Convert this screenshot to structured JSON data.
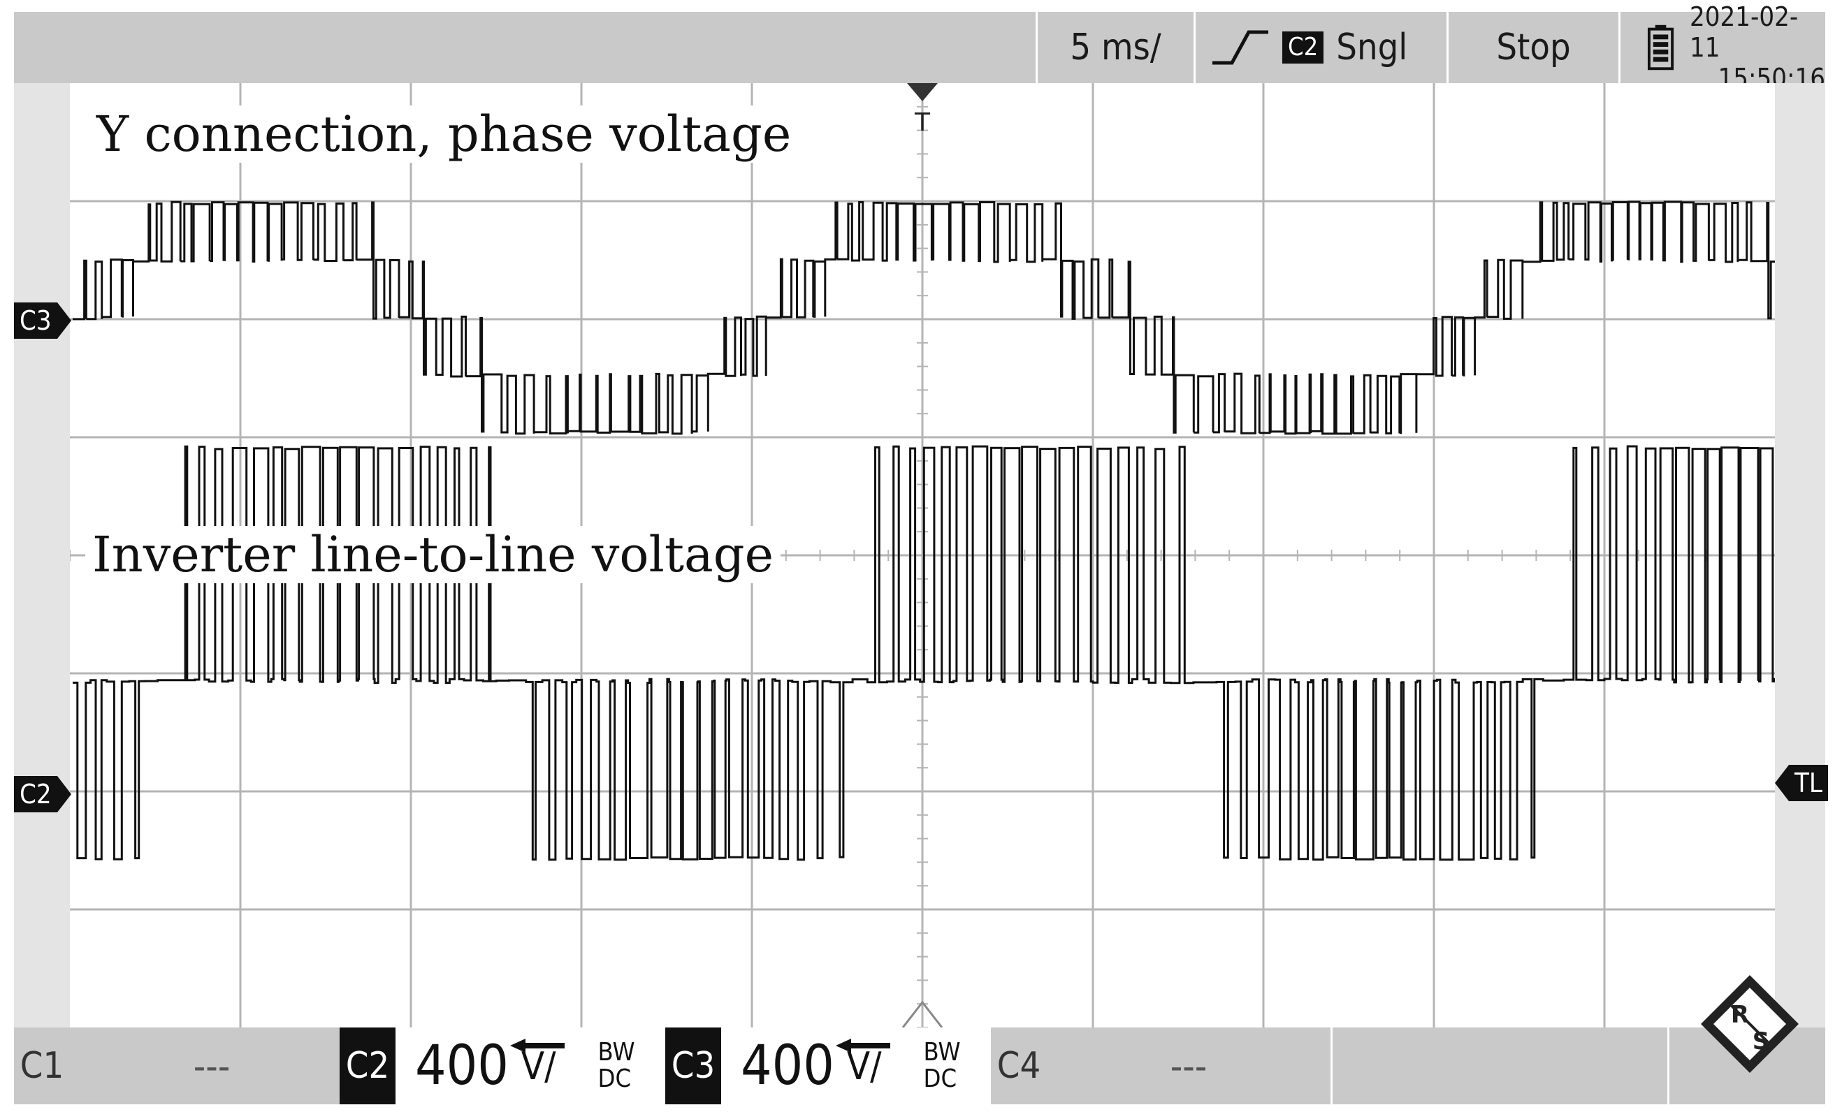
{
  "status_bar": {
    "timebase": "5 ms/",
    "trigger_source": "C2",
    "trigger_mode": "Sngl",
    "run_state": "Stop",
    "date": "2021-02-11",
    "time": "15:50:16",
    "trigger_slope_icon": "rising-edge-icon",
    "battery_icon": "battery-icon"
  },
  "annotations": {
    "upper": "Y connection, phase voltage",
    "lower": "Inverter line-to-line voltage"
  },
  "markers": {
    "c3": "C3",
    "c2": "C2",
    "trigger_level": "TL",
    "trigger_pos": "T"
  },
  "channels": [
    {
      "label": "C1",
      "value": "---",
      "active": false
    },
    {
      "label": "C2",
      "value": "400",
      "unit": "V/",
      "bw": "BW",
      "coupling": "DC",
      "active": true
    },
    {
      "label": "C3",
      "value": "400",
      "unit": "V/",
      "bw": "BW",
      "coupling": "DC",
      "active": true
    },
    {
      "label": "C4",
      "value": "---",
      "active": false
    }
  ],
  "logo": {
    "text_top": "R",
    "text_bottom": "S"
  },
  "colors": {
    "waveform": "#111111",
    "grid": "#b4b4b4",
    "panel": "#c9c9c9"
  }
}
